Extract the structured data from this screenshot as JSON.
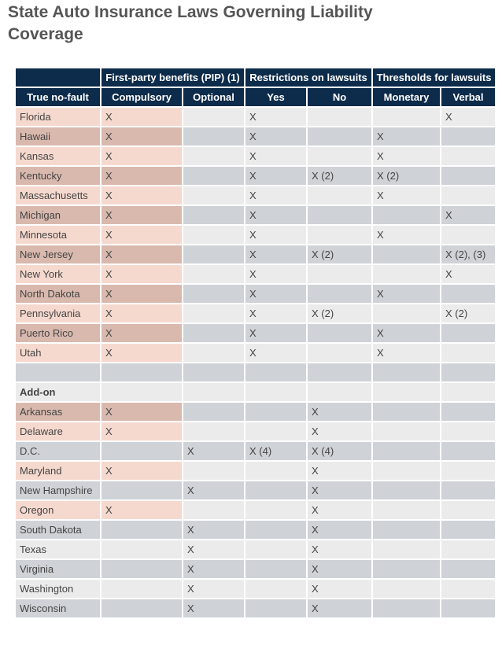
{
  "title": "State Auto Insurance Laws Governing Liability Coverage",
  "table": {
    "group_headers": {
      "pip": "First-party benefits (PIP) (1)",
      "restrictions": "Restrictions on lawsuits",
      "thresholds": "Thresholds for lawsuits"
    },
    "columns": [
      "True no-fault",
      "Compulsory",
      "Optional",
      "Yes",
      "No",
      "Monetary",
      "Verbal"
    ],
    "rows": [
      {
        "cells": [
          "Florida",
          "X",
          "",
          "X",
          "",
          "",
          "X"
        ],
        "pink": 2
      },
      {
        "cells": [
          "Hawaii",
          "X",
          "",
          "X",
          "",
          "X",
          ""
        ],
        "pink": 2
      },
      {
        "cells": [
          "Kansas",
          "X",
          "",
          "X",
          "",
          "X",
          ""
        ],
        "pink": 2
      },
      {
        "cells": [
          "Kentucky",
          "X",
          "",
          "X",
          "X (2)",
          "X (2)",
          ""
        ],
        "pink": 2
      },
      {
        "cells": [
          "Massachusetts",
          "X",
          "",
          "X",
          "",
          "X",
          ""
        ],
        "pink": 2
      },
      {
        "cells": [
          "Michigan",
          "X",
          "",
          "X",
          "",
          "",
          "X"
        ],
        "pink": 2
      },
      {
        "cells": [
          "Minnesota",
          "X",
          "",
          "X",
          "",
          "X",
          ""
        ],
        "pink": 2
      },
      {
        "cells": [
          "New Jersey",
          "X",
          "",
          "X",
          "X (2)",
          "",
          "X (2), (3)"
        ],
        "pink": 2
      },
      {
        "cells": [
          "New York",
          "X",
          "",
          "X",
          "",
          "",
          "X"
        ],
        "pink": 2
      },
      {
        "cells": [
          "North Dakota",
          "X",
          "",
          "X",
          "",
          "X",
          ""
        ],
        "pink": 2
      },
      {
        "cells": [
          "Pennsylvania",
          "X",
          "",
          "X",
          "X (2)",
          "",
          "X (2)"
        ],
        "pink": 2
      },
      {
        "cells": [
          "Puerto Rico",
          "X",
          "",
          "X",
          "",
          "X",
          ""
        ],
        "pink": 2
      },
      {
        "cells": [
          "Utah",
          "X",
          "",
          "X",
          "",
          "X",
          ""
        ],
        "pink": 2
      },
      {
        "cells": [
          "",
          "",
          "",
          "",
          "",
          "",
          ""
        ],
        "pink": 0
      },
      {
        "cells": [
          "Add-on",
          "",
          "",
          "",
          "",
          "",
          ""
        ],
        "pink": 0,
        "section": true
      },
      {
        "cells": [
          "Arkansas",
          "X",
          "",
          "",
          "X",
          "",
          ""
        ],
        "pink": 2
      },
      {
        "cells": [
          "Delaware",
          "X",
          "",
          "",
          "X",
          "",
          ""
        ],
        "pink": 2
      },
      {
        "cells": [
          "D.C.",
          "",
          "X",
          "X (4)",
          "X (4)",
          "",
          ""
        ],
        "pink": 0
      },
      {
        "cells": [
          "Maryland",
          "X",
          "",
          "",
          "X",
          "",
          ""
        ],
        "pink": 2
      },
      {
        "cells": [
          "New Hampshire",
          "",
          "X",
          "",
          "X",
          "",
          ""
        ],
        "pink": 0
      },
      {
        "cells": [
          "Oregon",
          "X",
          "",
          "",
          "X",
          "",
          ""
        ],
        "pink": 2
      },
      {
        "cells": [
          "South Dakota",
          "",
          "X",
          "",
          "X",
          "",
          ""
        ],
        "pink": 0
      },
      {
        "cells": [
          "Texas",
          "",
          "X",
          "",
          "X",
          "",
          ""
        ],
        "pink": 0
      },
      {
        "cells": [
          "Virginia",
          "",
          "X",
          "",
          "X",
          "",
          ""
        ],
        "pink": 0
      },
      {
        "cells": [
          "Washington",
          "",
          "X",
          "",
          "X",
          "",
          ""
        ],
        "pink": 0
      },
      {
        "cells": [
          "Wisconsin",
          "",
          "X",
          "",
          "X",
          "",
          ""
        ],
        "pink": 0
      }
    ]
  }
}
